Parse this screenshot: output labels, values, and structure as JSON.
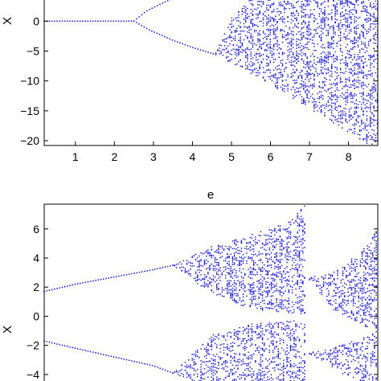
{
  "colors": {
    "points": "#1f1fd8",
    "axes": "#000000",
    "background": "#ffffff"
  },
  "chart_data": [
    {
      "type": "scatter",
      "title": "",
      "xlabel": "e",
      "ylabel": "X",
      "xlim": [
        0.2,
        8.75
      ],
      "ylim": [
        -20.8,
        3.8
      ],
      "xticks": [
        1,
        2,
        3,
        4,
        5,
        6,
        7,
        8
      ],
      "yticks": [
        0,
        -5,
        -10,
        -15,
        -20
      ],
      "grid": false,
      "series": [
        {
          "kind": "period-1 branch",
          "x": [
            0.2,
            2.5
          ],
          "y": [
            0.0,
            0.0
          ]
        },
        {
          "kind": "upper branch",
          "x": [
            2.5,
            2.8,
            3.1,
            3.5
          ],
          "y": [
            0.0,
            1.6,
            2.6,
            3.8
          ]
        },
        {
          "kind": "lower branch",
          "x": [
            2.5,
            2.9,
            3.5,
            4.0,
            4.6
          ],
          "y": [
            0.0,
            -1.5,
            -3.2,
            -4.4,
            -5.6
          ]
        },
        {
          "kind": "chaotic band envelope",
          "x": [
            4.6,
            5.0,
            5.5,
            6.0,
            6.5,
            7.0,
            7.5,
            8.0,
            8.5,
            8.75
          ],
          "y_min": [
            -5.8,
            -7.0,
            -8.8,
            -10.6,
            -12.6,
            -14.6,
            -16.6,
            -18.6,
            -20.6,
            -20.8
          ],
          "y_max": [
            -5.2,
            0.5,
            3.8,
            3.8,
            3.8,
            3.8,
            3.8,
            3.8,
            3.8,
            3.8
          ]
        }
      ]
    },
    {
      "type": "scatter",
      "title": "",
      "xlabel": "",
      "ylabel": "X",
      "xlim": [
        0.2,
        8.75
      ],
      "ylim": [
        -5.0,
        7.7
      ],
      "yticks": [
        6,
        4,
        2,
        0,
        -2,
        -4
      ],
      "grid": false,
      "series": [
        {
          "kind": "upper period-1 branch",
          "x": [
            0.2,
            1.0,
            2.0,
            3.0,
            3.5
          ],
          "y": [
            1.7,
            2.2,
            2.7,
            3.2,
            3.5
          ]
        },
        {
          "kind": "lower period-1 branch",
          "x": [
            0.2,
            1.0,
            2.0,
            3.0,
            3.5
          ],
          "y": [
            -1.7,
            -2.2,
            -2.8,
            -3.4,
            -3.9
          ]
        },
        {
          "kind": "upper chaotic band",
          "x": [
            3.5,
            4.5,
            5.5,
            6.5,
            6.9
          ],
          "y_min": [
            3.5,
            1.5,
            0.5,
            0.2,
            0.1
          ],
          "y_max": [
            3.5,
            4.8,
            5.6,
            6.5,
            7.7
          ]
        },
        {
          "kind": "lower chaotic band",
          "x": [
            3.5,
            4.5,
            5.5,
            6.5,
            6.9
          ],
          "y_min": [
            -3.9,
            -5.0,
            -5.0,
            -5.0,
            -5.0
          ],
          "y_max": [
            -3.9,
            -1.3,
            -0.5,
            -0.3,
            -0.2
          ]
        },
        {
          "kind": "right periodic window",
          "x": [
            7.0,
            7.6,
            8.0,
            8.5,
            8.75
          ],
          "y_min": [
            2.5,
            0.5,
            -0.2,
            -0.8,
            -1.0
          ],
          "y_max": [
            2.7,
            3.0,
            3.8,
            5.0,
            6.0
          ]
        },
        {
          "kind": "right lower band",
          "x": [
            7.0,
            7.6,
            8.0,
            8.5,
            8.75
          ],
          "y_min": [
            -2.6,
            -3.5,
            -4.2,
            -4.8,
            -5.0
          ],
          "y_max": [
            -2.5,
            -2.2,
            -1.8,
            -1.4,
            -1.0
          ]
        }
      ]
    }
  ]
}
